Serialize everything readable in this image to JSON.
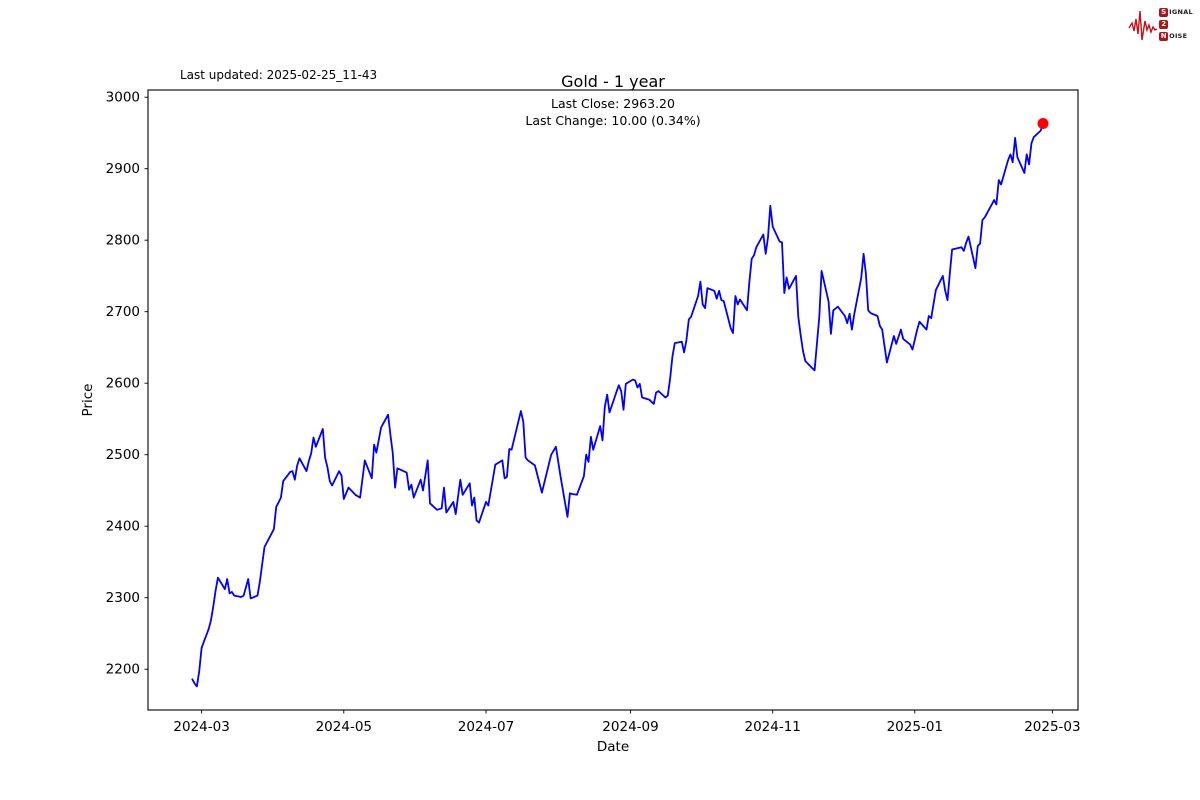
{
  "header": {
    "last_updated": "Last updated: 2025-02-25_11-43",
    "title": "Gold - 1 year",
    "last_close_line": "Last Close: 2963.20",
    "last_change_line": "Last Change: 10.00 (0.34%)"
  },
  "logo": {
    "rows": [
      {
        "boxed": "S",
        "rest": "IGNAL"
      },
      {
        "boxed": "2",
        "rest": ""
      },
      {
        "boxed": "N",
        "rest": "OISE"
      }
    ],
    "waveform_color": "#c41017",
    "box_color": "#b01217"
  },
  "chart_data": {
    "type": "line",
    "title": "Gold - 1 year",
    "subtitle_last_close": "Last Close: 2963.20",
    "subtitle_last_change": "Last Change: 10.00 (0.34%)",
    "xlabel": "Date",
    "ylabel": "Price",
    "grid": false,
    "legend": "none",
    "line_color": "#0000ff",
    "marker_color": "#ff0000",
    "axis_color": "#000000",
    "last_close": 2963.2,
    "last_change": 10.0,
    "last_change_pct": 0.34,
    "xlim": [
      "2024-02-07",
      "2025-03-12"
    ],
    "ylim": [
      2143,
      3010
    ],
    "y_ticks": [
      2200,
      2300,
      2400,
      2500,
      2600,
      2700,
      2800,
      2900,
      3000
    ],
    "x_ticks": [
      {
        "label": "2024-03",
        "date": "2024-03-01"
      },
      {
        "label": "2024-05",
        "date": "2024-05-01"
      },
      {
        "label": "2024-07",
        "date": "2024-07-01"
      },
      {
        "label": "2024-09",
        "date": "2024-09-01"
      },
      {
        "label": "2024-11",
        "date": "2024-11-01"
      },
      {
        "label": "2025-01",
        "date": "2025-01-01"
      },
      {
        "label": "2025-03",
        "date": "2025-03-01"
      }
    ],
    "series": [
      {
        "points": [
          [
            "2024-02-26",
            2186
          ],
          [
            "2024-02-27",
            2180
          ],
          [
            "2024-02-28",
            2176
          ],
          [
            "2024-02-29",
            2198
          ],
          [
            "2024-03-01",
            2230
          ],
          [
            "2024-03-04",
            2256
          ],
          [
            "2024-03-05",
            2268
          ],
          [
            "2024-03-06",
            2288
          ],
          [
            "2024-03-07",
            2310
          ],
          [
            "2024-03-08",
            2328
          ],
          [
            "2024-03-11",
            2312
          ],
          [
            "2024-03-12",
            2326
          ],
          [
            "2024-03-13",
            2306
          ],
          [
            "2024-03-14",
            2308
          ],
          [
            "2024-03-15",
            2303
          ],
          [
            "2024-03-18",
            2301
          ],
          [
            "2024-03-19",
            2303
          ],
          [
            "2024-03-21",
            2326
          ],
          [
            "2024-03-22",
            2299
          ],
          [
            "2024-03-25",
            2303
          ],
          [
            "2024-03-26",
            2323
          ],
          [
            "2024-03-27",
            2347
          ],
          [
            "2024-03-28",
            2371
          ],
          [
            "2024-04-01",
            2396
          ],
          [
            "2024-04-02",
            2427
          ],
          [
            "2024-04-03",
            2433
          ],
          [
            "2024-04-04",
            2440
          ],
          [
            "2024-04-05",
            2463
          ],
          [
            "2024-04-08",
            2476
          ],
          [
            "2024-04-09",
            2477
          ],
          [
            "2024-04-10",
            2465
          ],
          [
            "2024-04-11",
            2485
          ],
          [
            "2024-04-12",
            2495
          ],
          [
            "2024-04-15",
            2477
          ],
          [
            "2024-04-16",
            2491
          ],
          [
            "2024-04-17",
            2502
          ],
          [
            "2024-04-18",
            2524
          ],
          [
            "2024-04-19",
            2511
          ],
          [
            "2024-04-22",
            2536
          ],
          [
            "2024-04-23",
            2496
          ],
          [
            "2024-04-24",
            2482
          ],
          [
            "2024-04-25",
            2463
          ],
          [
            "2024-04-26",
            2457
          ],
          [
            "2024-04-29",
            2477
          ],
          [
            "2024-04-30",
            2471
          ],
          [
            "2024-05-01",
            2438
          ],
          [
            "2024-05-03",
            2454
          ],
          [
            "2024-05-06",
            2444
          ],
          [
            "2024-05-08",
            2440
          ],
          [
            "2024-05-10",
            2492
          ],
          [
            "2024-05-13",
            2467
          ],
          [
            "2024-05-14",
            2514
          ],
          [
            "2024-05-15",
            2503
          ],
          [
            "2024-05-17",
            2538
          ],
          [
            "2024-05-20",
            2556
          ],
          [
            "2024-05-21",
            2528
          ],
          [
            "2024-05-22",
            2503
          ],
          [
            "2024-05-23",
            2454
          ],
          [
            "2024-05-24",
            2481
          ],
          [
            "2024-05-28",
            2475
          ],
          [
            "2024-05-29",
            2451
          ],
          [
            "2024-05-30",
            2458
          ],
          [
            "2024-05-31",
            2440
          ],
          [
            "2024-06-03",
            2465
          ],
          [
            "2024-06-04",
            2450
          ],
          [
            "2024-06-06",
            2492
          ],
          [
            "2024-06-07",
            2432
          ],
          [
            "2024-06-10",
            2423
          ],
          [
            "2024-06-12",
            2425
          ],
          [
            "2024-06-13",
            2454
          ],
          [
            "2024-06-14",
            2419
          ],
          [
            "2024-06-17",
            2434
          ],
          [
            "2024-06-18",
            2417
          ],
          [
            "2024-06-20",
            2465
          ],
          [
            "2024-06-21",
            2444
          ],
          [
            "2024-06-24",
            2460
          ],
          [
            "2024-06-25",
            2429
          ],
          [
            "2024-06-26",
            2440
          ],
          [
            "2024-06-27",
            2408
          ],
          [
            "2024-06-28",
            2405
          ],
          [
            "2024-07-01",
            2434
          ],
          [
            "2024-07-02",
            2429
          ],
          [
            "2024-07-05",
            2486
          ],
          [
            "2024-07-08",
            2492
          ],
          [
            "2024-07-09",
            2467
          ],
          [
            "2024-07-10",
            2469
          ],
          [
            "2024-07-11",
            2508
          ],
          [
            "2024-07-12",
            2507
          ],
          [
            "2024-07-16",
            2561
          ],
          [
            "2024-07-17",
            2546
          ],
          [
            "2024-07-18",
            2496
          ],
          [
            "2024-07-19",
            2492
          ],
          [
            "2024-07-22",
            2485
          ],
          [
            "2024-07-25",
            2447
          ],
          [
            "2024-07-29",
            2500
          ],
          [
            "2024-07-31",
            2511
          ],
          [
            "2024-08-02",
            2469
          ],
          [
            "2024-08-05",
            2413
          ],
          [
            "2024-08-06",
            2446
          ],
          [
            "2024-08-07",
            2445
          ],
          [
            "2024-08-09",
            2444
          ],
          [
            "2024-08-12",
            2470
          ],
          [
            "2024-08-13",
            2500
          ],
          [
            "2024-08-14",
            2490
          ],
          [
            "2024-08-15",
            2525
          ],
          [
            "2024-08-16",
            2507
          ],
          [
            "2024-08-19",
            2540
          ],
          [
            "2024-08-20",
            2520
          ],
          [
            "2024-08-21",
            2567
          ],
          [
            "2024-08-22",
            2584
          ],
          [
            "2024-08-23",
            2559
          ],
          [
            "2024-08-26",
            2588
          ],
          [
            "2024-08-27",
            2597
          ],
          [
            "2024-08-28",
            2589
          ],
          [
            "2024-08-29",
            2563
          ],
          [
            "2024-08-30",
            2599
          ],
          [
            "2024-09-02",
            2605
          ],
          [
            "2024-09-03",
            2604
          ],
          [
            "2024-09-04",
            2594
          ],
          [
            "2024-09-05",
            2599
          ],
          [
            "2024-09-06",
            2580
          ],
          [
            "2024-09-09",
            2577
          ],
          [
            "2024-09-10",
            2574
          ],
          [
            "2024-09-11",
            2571
          ],
          [
            "2024-09-12",
            2587
          ],
          [
            "2024-09-13",
            2589
          ],
          [
            "2024-09-16",
            2580
          ],
          [
            "2024-09-17",
            2583
          ],
          [
            "2024-09-18",
            2606
          ],
          [
            "2024-09-19",
            2637
          ],
          [
            "2024-09-20",
            2656
          ],
          [
            "2024-09-23",
            2658
          ],
          [
            "2024-09-24",
            2643
          ],
          [
            "2024-09-25",
            2660
          ],
          [
            "2024-09-26",
            2689
          ],
          [
            "2024-09-27",
            2693
          ],
          [
            "2024-09-30",
            2722
          ],
          [
            "2024-10-01",
            2742
          ],
          [
            "2024-10-02",
            2710
          ],
          [
            "2024-10-03",
            2705
          ],
          [
            "2024-10-04",
            2733
          ],
          [
            "2024-10-07",
            2729
          ],
          [
            "2024-10-08",
            2718
          ],
          [
            "2024-10-09",
            2729
          ],
          [
            "2024-10-10",
            2716
          ],
          [
            "2024-10-11",
            2715
          ],
          [
            "2024-10-14",
            2677
          ],
          [
            "2024-10-15",
            2670
          ],
          [
            "2024-10-16",
            2722
          ],
          [
            "2024-10-17",
            2710
          ],
          [
            "2024-10-18",
            2717
          ],
          [
            "2024-10-21",
            2702
          ],
          [
            "2024-10-22",
            2742
          ],
          [
            "2024-10-23",
            2774
          ],
          [
            "2024-10-24",
            2779
          ],
          [
            "2024-10-25",
            2790
          ],
          [
            "2024-10-28",
            2808
          ],
          [
            "2024-10-29",
            2781
          ],
          [
            "2024-10-30",
            2804
          ],
          [
            "2024-10-31",
            2848
          ],
          [
            "2024-11-01",
            2819
          ],
          [
            "2024-11-04",
            2798
          ],
          [
            "2024-11-05",
            2797
          ],
          [
            "2024-11-06",
            2726
          ],
          [
            "2024-11-07",
            2748
          ],
          [
            "2024-11-08",
            2732
          ],
          [
            "2024-11-11",
            2750
          ],
          [
            "2024-11-12",
            2693
          ],
          [
            "2024-11-13",
            2668
          ],
          [
            "2024-11-14",
            2645
          ],
          [
            "2024-11-15",
            2631
          ],
          [
            "2024-11-18",
            2621
          ],
          [
            "2024-11-19",
            2618
          ],
          [
            "2024-11-20",
            2655
          ],
          [
            "2024-11-21",
            2693
          ],
          [
            "2024-11-22",
            2757
          ],
          [
            "2024-11-25",
            2714
          ],
          [
            "2024-11-26",
            2669
          ],
          [
            "2024-11-27",
            2702
          ],
          [
            "2024-11-29",
            2707
          ],
          [
            "2024-12-02",
            2694
          ],
          [
            "2024-12-03",
            2684
          ],
          [
            "2024-12-04",
            2697
          ],
          [
            "2024-12-05",
            2675
          ],
          [
            "2024-12-06",
            2696
          ],
          [
            "2024-12-09",
            2747
          ],
          [
            "2024-12-10",
            2781
          ],
          [
            "2024-12-11",
            2753
          ],
          [
            "2024-12-12",
            2702
          ],
          [
            "2024-12-13",
            2698
          ],
          [
            "2024-12-16",
            2694
          ],
          [
            "2024-12-17",
            2680
          ],
          [
            "2024-12-18",
            2675
          ],
          [
            "2024-12-19",
            2652
          ],
          [
            "2024-12-20",
            2629
          ],
          [
            "2024-12-23",
            2666
          ],
          [
            "2024-12-24",
            2655
          ],
          [
            "2024-12-26",
            2675
          ],
          [
            "2024-12-27",
            2662
          ],
          [
            "2024-12-30",
            2654
          ],
          [
            "2024-12-31",
            2647
          ],
          [
            "2025-01-02",
            2675
          ],
          [
            "2025-01-03",
            2686
          ],
          [
            "2025-01-06",
            2675
          ],
          [
            "2025-01-07",
            2694
          ],
          [
            "2025-01-08",
            2691
          ],
          [
            "2025-01-10",
            2730
          ],
          [
            "2025-01-13",
            2750
          ],
          [
            "2025-01-14",
            2730
          ],
          [
            "2025-01-15",
            2716
          ],
          [
            "2025-01-16",
            2753
          ],
          [
            "2025-01-17",
            2787
          ],
          [
            "2025-01-21",
            2790
          ],
          [
            "2025-01-22",
            2785
          ],
          [
            "2025-01-23",
            2796
          ],
          [
            "2025-01-24",
            2805
          ],
          [
            "2025-01-27",
            2761
          ],
          [
            "2025-01-28",
            2792
          ],
          [
            "2025-01-29",
            2795
          ],
          [
            "2025-01-30",
            2828
          ],
          [
            "2025-01-31",
            2832
          ],
          [
            "2025-02-03",
            2850
          ],
          [
            "2025-02-04",
            2856
          ],
          [
            "2025-02-05",
            2850
          ],
          [
            "2025-02-06",
            2884
          ],
          [
            "2025-02-07",
            2878
          ],
          [
            "2025-02-10",
            2912
          ],
          [
            "2025-02-11",
            2920
          ],
          [
            "2025-02-12",
            2909
          ],
          [
            "2025-02-13",
            2943
          ],
          [
            "2025-02-14",
            2916
          ],
          [
            "2025-02-17",
            2894
          ],
          [
            "2025-02-18",
            2920
          ],
          [
            "2025-02-19",
            2906
          ],
          [
            "2025-02-20",
            2935
          ],
          [
            "2025-02-21",
            2944
          ],
          [
            "2025-02-24",
            2953.2
          ],
          [
            "2025-02-25",
            2963.2
          ]
        ]
      }
    ]
  }
}
